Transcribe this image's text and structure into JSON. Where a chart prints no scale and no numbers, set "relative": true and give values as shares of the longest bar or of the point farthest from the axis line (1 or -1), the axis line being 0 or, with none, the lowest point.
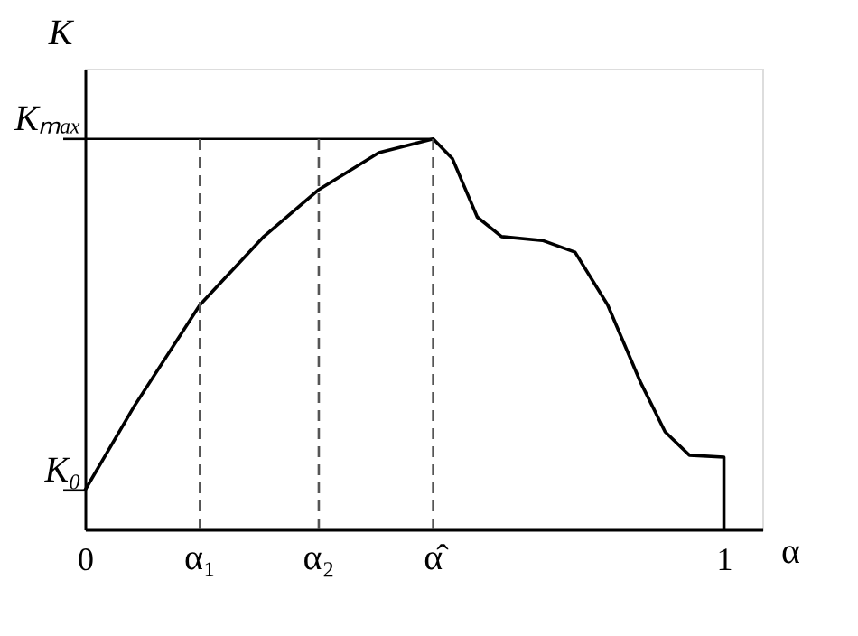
{
  "chart_data": {
    "type": "line",
    "relative": true,
    "xlabel": "α",
    "ylabel": "K",
    "xlim": [
      0,
      1.06
    ],
    "xticks": [
      0,
      1
    ],
    "series": [
      {
        "color": "#000000",
        "x": [
          0,
          0.077,
          0.18,
          0.28,
          0.366,
          0.46,
          0.545,
          0.575,
          0.614,
          0.652,
          0.716,
          0.767,
          0.818,
          0.87,
          0.908,
          0.946,
          1,
          1
        ],
        "values": [
          0.1,
          0.315,
          0.575,
          0.75,
          0.87,
          0.965,
          1,
          0.95,
          0.8,
          0.75,
          0.74,
          0.71,
          0.575,
          0.375,
          0.25,
          0.19,
          0.185,
          0
        ]
      }
    ],
    "ref_lines": [
      {
        "axis": "y",
        "value": 1,
        "label": "Kₘₐₓ",
        "color": "#000000",
        "line_style": "solid"
      },
      {
        "axis": "y",
        "value": 0.1,
        "label": "K₀",
        "color": "#000000",
        "line_style": "solid"
      },
      {
        "axis": "x",
        "value": 0.18,
        "label": "α₁",
        "color": "#555555",
        "line_style": "dashed"
      },
      {
        "axis": "x",
        "value": 0.366,
        "label": "α₂",
        "color": "#555555",
        "line_style": "dashed"
      },
      {
        "axis": "x",
        "value": 0.545,
        "label": "α̂",
        "color": "#555555",
        "line_style": "dashed"
      }
    ],
    "grid": false,
    "tick_labels": "x"
  }
}
